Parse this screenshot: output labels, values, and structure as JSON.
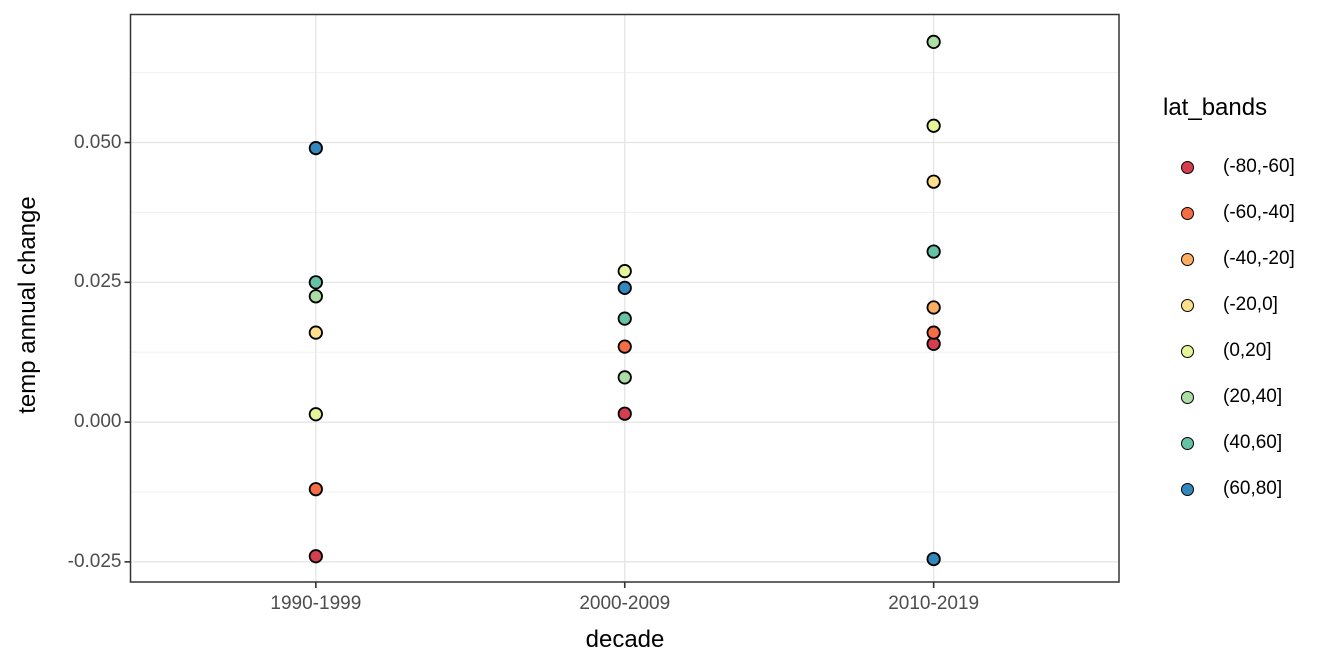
{
  "chart_data": {
    "type": "scatter",
    "title": "",
    "xlabel": "decade",
    "ylabel": "temp annual change",
    "categories": [
      "1990-1999",
      "2000-2009",
      "2010-2019"
    ],
    "y_tick_labels": [
      "0.050",
      "0.025",
      "0.000",
      "-0.025"
    ],
    "y_tick_values": [
      0.05,
      0.025,
      0.0,
      -0.025
    ],
    "y_minor_values": [
      0.0625,
      0.0375,
      0.0125,
      -0.0125
    ],
    "ylim": [
      -0.0286,
      0.0729
    ],
    "grid": true,
    "legend": {
      "title": "lat_bands",
      "position": "right"
    },
    "series": [
      {
        "name": "(-80,-60]",
        "color": "#D53E4F",
        "values": [
          -0.024,
          0.0015,
          0.014
        ]
      },
      {
        "name": "(-60,-40]",
        "color": "#F46D43",
        "values": [
          -0.012,
          0.0135,
          0.016
        ]
      },
      {
        "name": "(-40,-20]",
        "color": "#FDAE61",
        "values": [
          null,
          null,
          0.0205
        ]
      },
      {
        "name": "(-20,0]",
        "color": "#FEE08B",
        "values": [
          0.016,
          null,
          0.043
        ]
      },
      {
        "name": "(0,20]",
        "color": "#E6F598",
        "values": [
          0.0014,
          0.027,
          0.053
        ]
      },
      {
        "name": "(20,40]",
        "color": "#ABDDA4",
        "values": [
          0.0225,
          0.008,
          0.068
        ]
      },
      {
        "name": "(40,60]",
        "color": "#66C2A5",
        "values": [
          0.025,
          0.0185,
          0.0305
        ]
      },
      {
        "name": "(60,80]",
        "color": "#3288BD",
        "values": [
          0.049,
          0.024,
          -0.0245
        ]
      }
    ],
    "style_colors": {
      "panel_border": "#333333",
      "grid_major": "#e3e3e3",
      "grid_minor": "#f0f0f0",
      "tick_mark": "#333333",
      "point_stroke": "#000000",
      "axis_text": "#4d4d4d"
    }
  }
}
